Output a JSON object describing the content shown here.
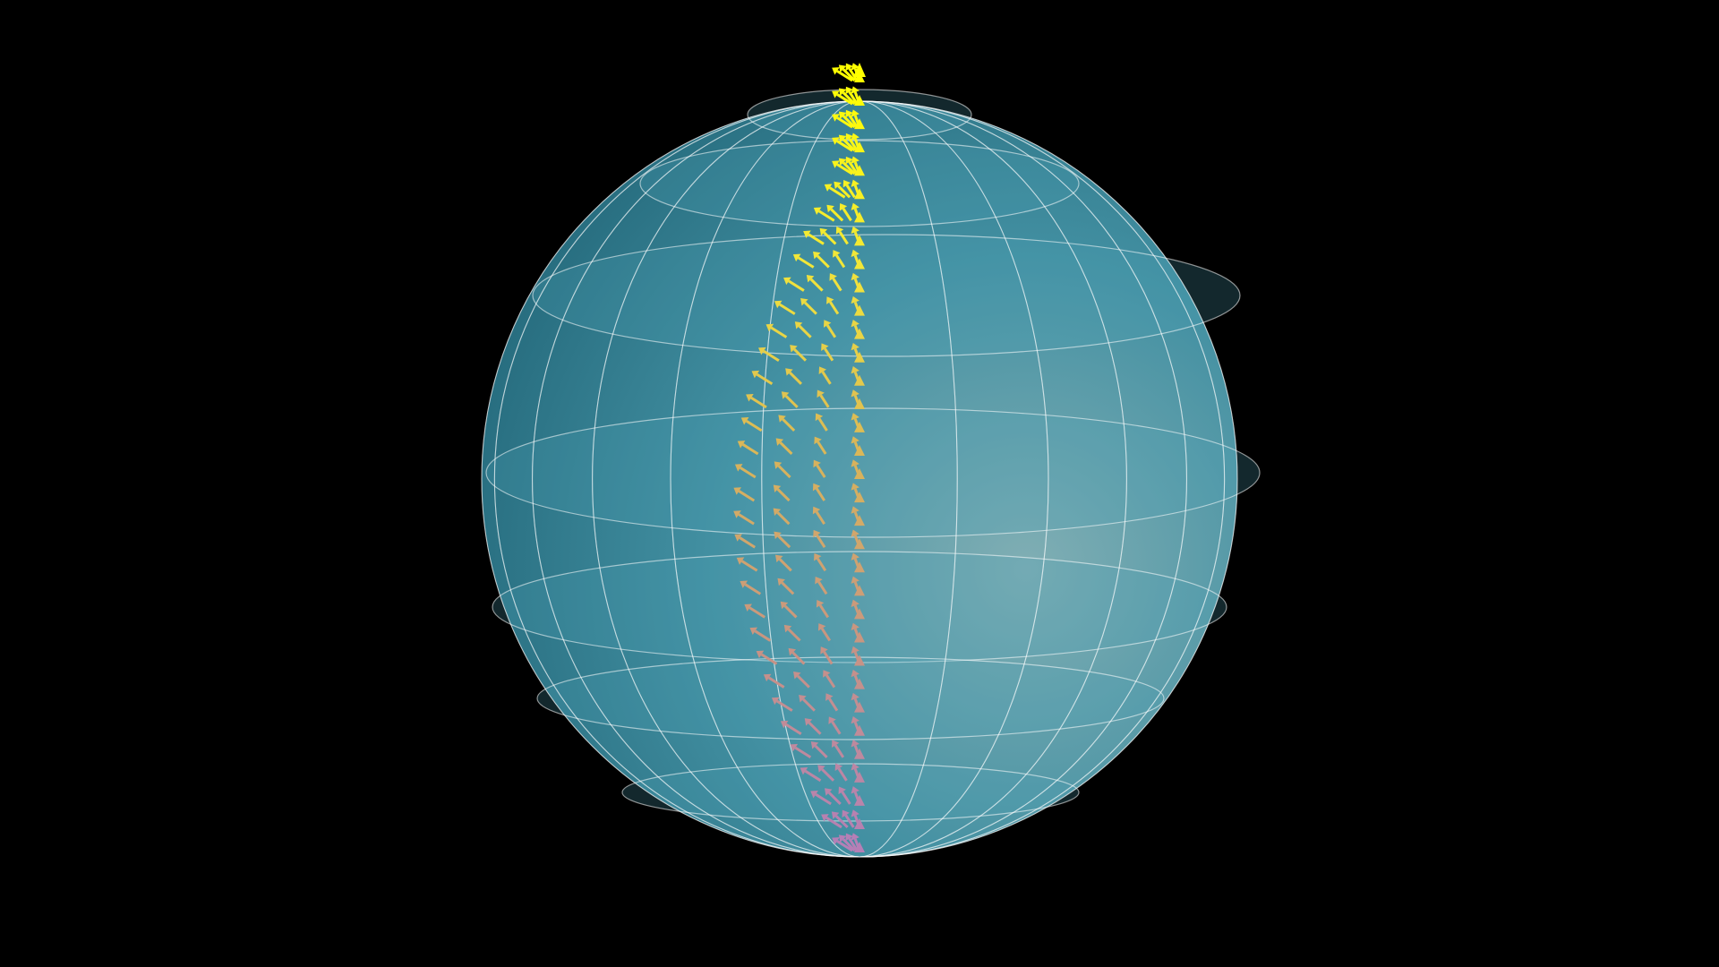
{
  "scene": {
    "background_color": "#000000",
    "sphere_colors": {
      "dark": "#2c7a8e",
      "mid": "#4aa0b4",
      "light": "#8fc2c8",
      "grid_line": "#ffffff"
    },
    "sphere_opacity": 0.9,
    "ring_count": 7,
    "meridian_count": 12,
    "vector_field": {
      "stem_count": 34,
      "colormap": [
        "#b57fb6",
        "#c89384",
        "#d8b45a",
        "#f2e63a",
        "#ffff00"
      ]
    }
  }
}
